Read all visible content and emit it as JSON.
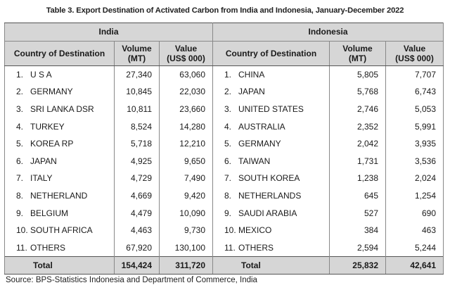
{
  "title": "Table 3. Export Destination of Activated Carbon from India and Indonesia, January-December 2022",
  "headers": {
    "india": "India",
    "indonesia": "Indonesia",
    "country_col": "Country of Destination",
    "volume_line1": "Volume",
    "volume_line2": "(MT)",
    "value_line1": "Value",
    "value_line2": "(US$ 000)"
  },
  "india_rows": [
    {
      "no": "1.",
      "country": "U S A",
      "volume": "27,340",
      "value": "63,060"
    },
    {
      "no": "2.",
      "country": "GERMANY",
      "volume": "10,845",
      "value": "22,030"
    },
    {
      "no": "3.",
      "country": "SRI LANKA DSR",
      "volume": "10,811",
      "value": "23,660"
    },
    {
      "no": "4.",
      "country": "TURKEY",
      "volume": "8,524",
      "value": "14,280"
    },
    {
      "no": "5.",
      "country": "KOREA RP",
      "volume": "5,718",
      "value": "12,210"
    },
    {
      "no": "6.",
      "country": "JAPAN",
      "volume": "4,925",
      "value": "9,650"
    },
    {
      "no": "7.",
      "country": "ITALY",
      "volume": "4,729",
      "value": "7,490"
    },
    {
      "no": "8.",
      "country": "NETHERLAND",
      "volume": "4,669",
      "value": "9,420"
    },
    {
      "no": "9.",
      "country": "BELGIUM",
      "volume": "4,479",
      "value": "10,090"
    },
    {
      "no": "10.",
      "country": "SOUTH AFRICA",
      "volume": "4,463",
      "value": "9,730"
    },
    {
      "no": "11.",
      "country": "OTHERS",
      "volume": "67,920",
      "value": "130,100"
    }
  ],
  "indonesia_rows": [
    {
      "no": "1.",
      "country": "CHINA",
      "volume": "5,805",
      "value": "7,707"
    },
    {
      "no": "2.",
      "country": "JAPAN",
      "volume": "5,768",
      "value": "6,743"
    },
    {
      "no": "3.",
      "country": "UNITED STATES",
      "volume": "2,746",
      "value": "5,053"
    },
    {
      "no": "4.",
      "country": "AUSTRALIA",
      "volume": "2,352",
      "value": "5,991"
    },
    {
      "no": "5.",
      "country": "GERMANY",
      "volume": "2,042",
      "value": "3,935"
    },
    {
      "no": "6.",
      "country": "TAIWAN",
      "volume": "1,731",
      "value": "3,536"
    },
    {
      "no": "7.",
      "country": "SOUTH KOREA",
      "volume": "1,238",
      "value": "2,024"
    },
    {
      "no": "8.",
      "country": "NETHERLANDS",
      "volume": "645",
      "value": "1,254"
    },
    {
      "no": "9.",
      "country": "SAUDI ARABIA",
      "volume": "527",
      "value": "690"
    },
    {
      "no": "10.",
      "country": "MEXICO",
      "volume": "384",
      "value": "463"
    },
    {
      "no": "11.",
      "country": "OTHERS",
      "volume": "2,594",
      "value": "5,244"
    }
  ],
  "totals": {
    "label": "Total",
    "india_volume": "154,424",
    "india_value": "311,720",
    "indonesia_volume": "25,832",
    "indonesia_value": "42,641"
  },
  "source": "Source: BPS-Statistics Indonesia and Department of Commerce, India"
}
